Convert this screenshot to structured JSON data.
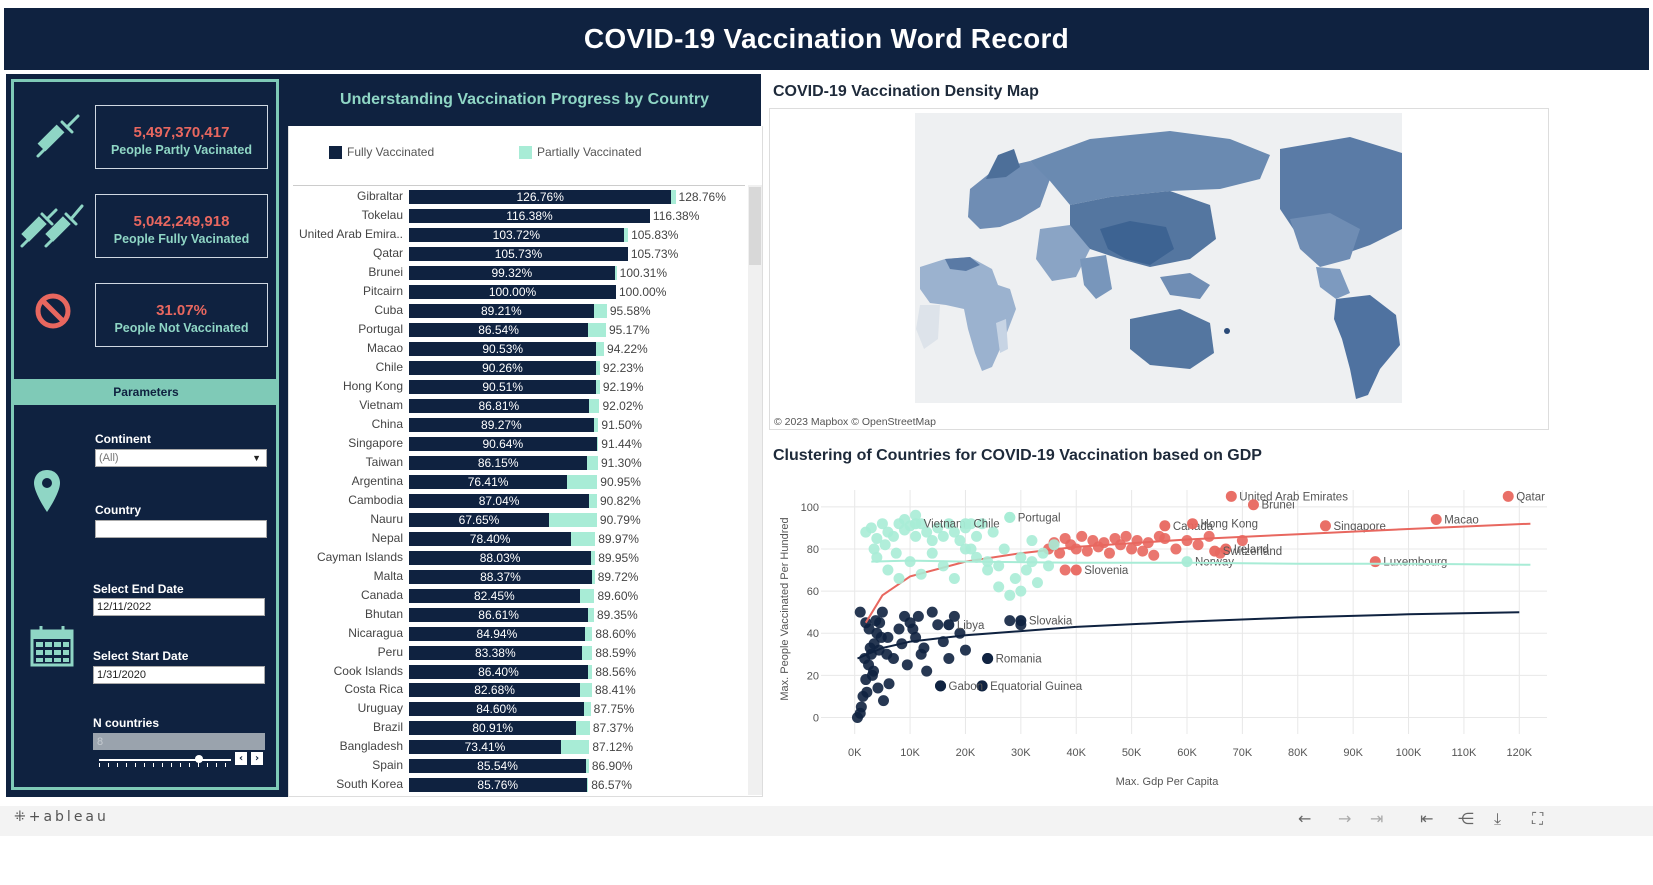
{
  "header": {
    "title": "COVID-19 Vaccination Word Record"
  },
  "kpis": [
    {
      "value": "5,497,370,417",
      "label": "People Partly Vacinated",
      "icon": "syringe-icon"
    },
    {
      "value": "5,042,249,918",
      "label": "People Fully Vacinated",
      "icon": "two-syringes-icon"
    },
    {
      "value": "31.07%",
      "label": "People Not Vaccinated",
      "icon": "prohibited-icon"
    }
  ],
  "params": {
    "title": "Parameters",
    "continent_label": "Continent",
    "continent_value": "(All)",
    "country_label": "Country",
    "country_value": "",
    "end_label": "Select End Date",
    "end_value": "12/11/2022",
    "start_label": "Select Start Date",
    "start_value": "1/31/2020",
    "n_label": "N countries",
    "n_value": "8"
  },
  "bar_section": {
    "title": "Understanding Vaccination Progress by Country",
    "legend_full": "Fully Vaccinated",
    "legend_partial": "Partially Vaccinated",
    "colors": {
      "full": "#0f2240",
      "partial": "#a8ecd6"
    }
  },
  "map_section": {
    "title": "COVID-19 Vaccination Density Map",
    "attribution": "© 2023 Mapbox  © OpenStreetMap"
  },
  "scatter_section": {
    "title": "Clustering of Countries for COVID-19 Vaccination based on GDP"
  },
  "chart_data": [
    {
      "type": "bar",
      "title": "Understanding Vaccination Progress by Country",
      "categories": [
        "Gibraltar",
        "Tokelau",
        "United Arab Emira..",
        "Qatar",
        "Brunei",
        "Pitcairn",
        "Cuba",
        "Portugal",
        "Macao",
        "Chile",
        "Hong Kong",
        "Vietnam",
        "China",
        "Singapore",
        "Taiwan",
        "Argentina",
        "Cambodia",
        "Nauru",
        "Nepal",
        "Cayman Islands",
        "Malta",
        "Canada",
        "Bhutan",
        "Nicaragua",
        "Peru",
        "Cook Islands",
        "Costa Rica",
        "Uruguay",
        "Brazil",
        "Bangladesh",
        "Spain",
        "South Korea"
      ],
      "series": [
        {
          "name": "Fully Vaccinated",
          "values": [
            126.76,
            116.38,
            103.72,
            105.73,
            99.32,
            100.0,
            89.21,
            86.54,
            90.53,
            90.26,
            90.51,
            86.81,
            89.27,
            90.64,
            86.15,
            76.41,
            87.04,
            67.65,
            78.4,
            88.03,
            88.37,
            82.45,
            86.61,
            84.94,
            83.38,
            86.4,
            82.68,
            84.6,
            80.91,
            73.41,
            85.54,
            85.76
          ]
        },
        {
          "name": "Partially Vaccinated",
          "values": [
            128.76,
            116.38,
            105.83,
            105.73,
            100.31,
            100.0,
            95.58,
            95.17,
            94.22,
            92.23,
            92.19,
            92.02,
            91.5,
            91.44,
            91.3,
            90.95,
            90.82,
            90.79,
            89.97,
            89.95,
            89.72,
            89.6,
            89.35,
            88.6,
            88.59,
            88.56,
            88.41,
            87.75,
            87.37,
            87.12,
            86.9,
            86.57
          ]
        }
      ],
      "labels_full": [
        "126.76%",
        "116.38%",
        "103.72%",
        "105.73%",
        "99.32%",
        "100.00%",
        "89.21%",
        "86.54%",
        "90.53%",
        "90.26%",
        "90.51%",
        "86.81%",
        "89.27%",
        "90.64%",
        "86.15%",
        "76.41%",
        "87.04%",
        "67.65%",
        "78.40%",
        "88.03%",
        "88.37%",
        "82.45%",
        "86.61%",
        "84.94%",
        "83.38%",
        "86.40%",
        "82.68%",
        "84.60%",
        "80.91%",
        "73.41%",
        "85.54%",
        "85.76%"
      ],
      "labels_partial": [
        "128.76%",
        "116.38%",
        "105.83%",
        "105.73%",
        "100.31%",
        "100.00%",
        "95.58%",
        "95.17%",
        "94.22%",
        "92.23%",
        "92.19%",
        "92.02%",
        "91.50%",
        "91.44%",
        "91.30%",
        "90.95%",
        "90.82%",
        "90.79%",
        "89.97%",
        "89.95%",
        "89.72%",
        "89.60%",
        "89.35%",
        "88.60%",
        "88.59%",
        "88.56%",
        "88.41%",
        "87.75%",
        "87.37%",
        "87.12%",
        "86.90%",
        "86.57%"
      ],
      "xlim": [
        0,
        135
      ]
    },
    {
      "type": "scatter",
      "title": "Clustering of Countries for COVID-19 Vaccination based on GDP",
      "xlabel": "Max. Gdp Per Capita",
      "ylabel": "Max. People Vaccinated Per Hundred",
      "xlim": [
        -5000,
        125000
      ],
      "ylim": [
        -5,
        108
      ],
      "xticks": [
        0,
        10000,
        20000,
        30000,
        40000,
        50000,
        60000,
        70000,
        80000,
        90000,
        100000,
        110000,
        120000
      ],
      "xtick_labels": [
        "0K",
        "10K",
        "20K",
        "30K",
        "40K",
        "50K",
        "60K",
        "70K",
        "80K",
        "90K",
        "100K",
        "110K",
        "120K"
      ],
      "yticks": [
        0,
        20,
        40,
        60,
        80,
        100
      ],
      "grid": true,
      "series": [
        {
          "color": "#0f2240",
          "points": [
            [
              500,
              0
            ],
            [
              1000,
              2
            ],
            [
              1500,
              10
            ],
            [
              2000,
              18
            ],
            [
              2500,
              25
            ],
            [
              3000,
              30
            ],
            [
              3500,
              35
            ],
            [
              4000,
              40
            ],
            [
              4500,
              45
            ],
            [
              5000,
              50
            ],
            [
              6000,
              38
            ],
            [
              7000,
              28
            ],
            [
              8000,
              42
            ],
            [
              9000,
              48
            ],
            [
              10000,
              45
            ],
            [
              11000,
              38
            ],
            [
              12000,
              30
            ],
            [
              13000,
              22
            ],
            [
              14000,
              50
            ],
            [
              15000,
              44
            ],
            [
              16000,
              36
            ],
            [
              17000,
              28
            ],
            [
              18000,
              48
            ],
            [
              19000,
              40
            ],
            [
              20000,
              32
            ],
            [
              1200,
              5
            ],
            [
              2200,
              12
            ],
            [
              3200,
              20
            ],
            [
              4200,
              14
            ],
            [
              5200,
              8
            ],
            [
              6200,
              16
            ],
            [
              2800,
              33
            ],
            [
              3800,
              46
            ],
            [
              4800,
              38
            ],
            [
              5800,
              30
            ],
            [
              8500,
              35
            ],
            [
              9500,
              25
            ],
            [
              10500,
              42
            ],
            [
              11500,
              48
            ],
            [
              12500,
              33
            ],
            [
              1800,
              28
            ],
            [
              2600,
              42
            ],
            [
              3400,
              22
            ],
            [
              4400,
              32
            ],
            [
              15500,
              15
            ],
            [
              23000,
              15
            ],
            [
              24000,
              28
            ],
            [
              28000,
              46
            ],
            [
              30000,
              44
            ],
            [
              1000,
              50
            ],
            [
              2000,
              45
            ]
          ],
          "labeled": [
            [
              30000,
              46,
              "Slovakia"
            ],
            [
              24000,
              28,
              "Romania"
            ],
            [
              23000,
              15,
              "Equatorial Guinea"
            ],
            [
              17000,
              44,
              "Libya"
            ],
            [
              15500,
              15,
              "Gabon"
            ]
          ],
          "trend": [
            [
              500,
              28
            ],
            [
              5000,
              33
            ],
            [
              10000,
              36
            ],
            [
              20000,
              39
            ],
            [
              30000,
              41
            ],
            [
              40000,
              43
            ],
            [
              60000,
              45.5
            ],
            [
              80000,
              47.5
            ],
            [
              100000,
              49
            ],
            [
              120000,
              50
            ]
          ]
        },
        {
          "color": "#e8675f",
          "points": [
            [
              35000,
              80
            ],
            [
              36000,
              83
            ],
            [
              37000,
              78
            ],
            [
              38000,
              85
            ],
            [
              39000,
              82
            ],
            [
              40000,
              80
            ],
            [
              41000,
              86
            ],
            [
              42000,
              79
            ],
            [
              43000,
              84
            ],
            [
              44000,
              81
            ],
            [
              45000,
              83
            ],
            [
              46000,
              78
            ],
            [
              47000,
              85
            ],
            [
              48000,
              82
            ],
            [
              49000,
              86
            ],
            [
              50000,
              80
            ],
            [
              51000,
              84
            ],
            [
              52000,
              79
            ],
            [
              53000,
              83
            ],
            [
              54000,
              77
            ],
            [
              56000,
              85
            ],
            [
              58000,
              80
            ],
            [
              62000,
              82
            ],
            [
              66000,
              78
            ],
            [
              38000,
              70
            ],
            [
              55000,
              86
            ],
            [
              60000,
              84
            ],
            [
              64000,
              86
            ],
            [
              70000,
              84
            ]
          ],
          "labeled": [
            [
              68000,
              105,
              "United Arab Emirates"
            ],
            [
              72000,
              101,
              "Brunei"
            ],
            [
              56000,
              91,
              "Canada"
            ],
            [
              61000,
              92,
              "Hong Kong"
            ],
            [
              67000,
              80,
              "Ireland"
            ],
            [
              85000,
              91,
              "Singapore"
            ],
            [
              105000,
              94,
              "Macao"
            ],
            [
              118000,
              105,
              "Qatar"
            ],
            [
              94000,
              74,
              "Luxembourg"
            ],
            [
              65000,
              79,
              "Switzerland"
            ],
            [
              40000,
              70,
              "Slovenia"
            ]
          ],
          "trend": [
            [
              2000,
              45
            ],
            [
              5000,
              58
            ],
            [
              10000,
              67
            ],
            [
              20000,
              74
            ],
            [
              30000,
              78
            ],
            [
              40000,
              81
            ],
            [
              60000,
              84.5
            ],
            [
              80000,
              87
            ],
            [
              100000,
              89.5
            ],
            [
              122000,
              92
            ]
          ]
        },
        {
          "color": "#a8ecd6",
          "points": [
            [
              2000,
              88
            ],
            [
              3000,
              90
            ],
            [
              4000,
              85
            ],
            [
              5000,
              92
            ],
            [
              6000,
              88
            ],
            [
              7000,
              86
            ],
            [
              8000,
              92
            ],
            [
              9000,
              89
            ],
            [
              10000,
              91
            ],
            [
              11000,
              86
            ],
            [
              12000,
              92
            ],
            [
              13000,
              88
            ],
            [
              14000,
              84
            ],
            [
              15000,
              90
            ],
            [
              16000,
              86
            ],
            [
              17000,
              92
            ],
            [
              18000,
              88
            ],
            [
              19000,
              84
            ],
            [
              20000,
              90
            ],
            [
              21000,
              80
            ],
            [
              22000,
              86
            ],
            [
              23000,
              92
            ],
            [
              24000,
              74
            ],
            [
              25000,
              88
            ],
            [
              26000,
              72
            ],
            [
              27000,
              80
            ],
            [
              28000,
              95
            ],
            [
              29000,
              66
            ],
            [
              30000,
              76
            ],
            [
              31000,
              70
            ],
            [
              32000,
              84
            ],
            [
              33000,
              64
            ],
            [
              34000,
              78
            ],
            [
              35000,
              72
            ],
            [
              36000,
              82
            ],
            [
              4000,
              76
            ],
            [
              6000,
              70
            ],
            [
              8000,
              66
            ],
            [
              10000,
              74
            ],
            [
              12000,
              68
            ],
            [
              14000,
              78
            ],
            [
              16000,
              72
            ],
            [
              18000,
              66
            ],
            [
              20000,
              80
            ],
            [
              22000,
              76
            ],
            [
              24000,
              70
            ],
            [
              26000,
              62
            ],
            [
              28000,
              58
            ],
            [
              30000,
              60
            ],
            [
              32000,
              74
            ],
            [
              9000,
              94
            ],
            [
              11000,
              96
            ],
            [
              21000,
              92
            ],
            [
              3500,
              80
            ],
            [
              5500,
              82
            ],
            [
              7500,
              78
            ]
          ],
          "labeled": [
            [
              11000,
              92,
              "Vietnam"
            ],
            [
              20000,
              92,
              "Chile"
            ],
            [
              28000,
              95,
              "Portugal"
            ],
            [
              60000,
              74,
              "Norway"
            ]
          ],
          "trend": [
            [
              3000,
              74
            ],
            [
              10000,
              74.5
            ],
            [
              20000,
              74
            ],
            [
              40000,
              73.5
            ],
            [
              60000,
              73.5
            ],
            [
              80000,
              73
            ],
            [
              100000,
              73
            ],
            [
              122000,
              72.5
            ]
          ]
        }
      ]
    }
  ],
  "footer": {
    "brand": "+ableau"
  }
}
